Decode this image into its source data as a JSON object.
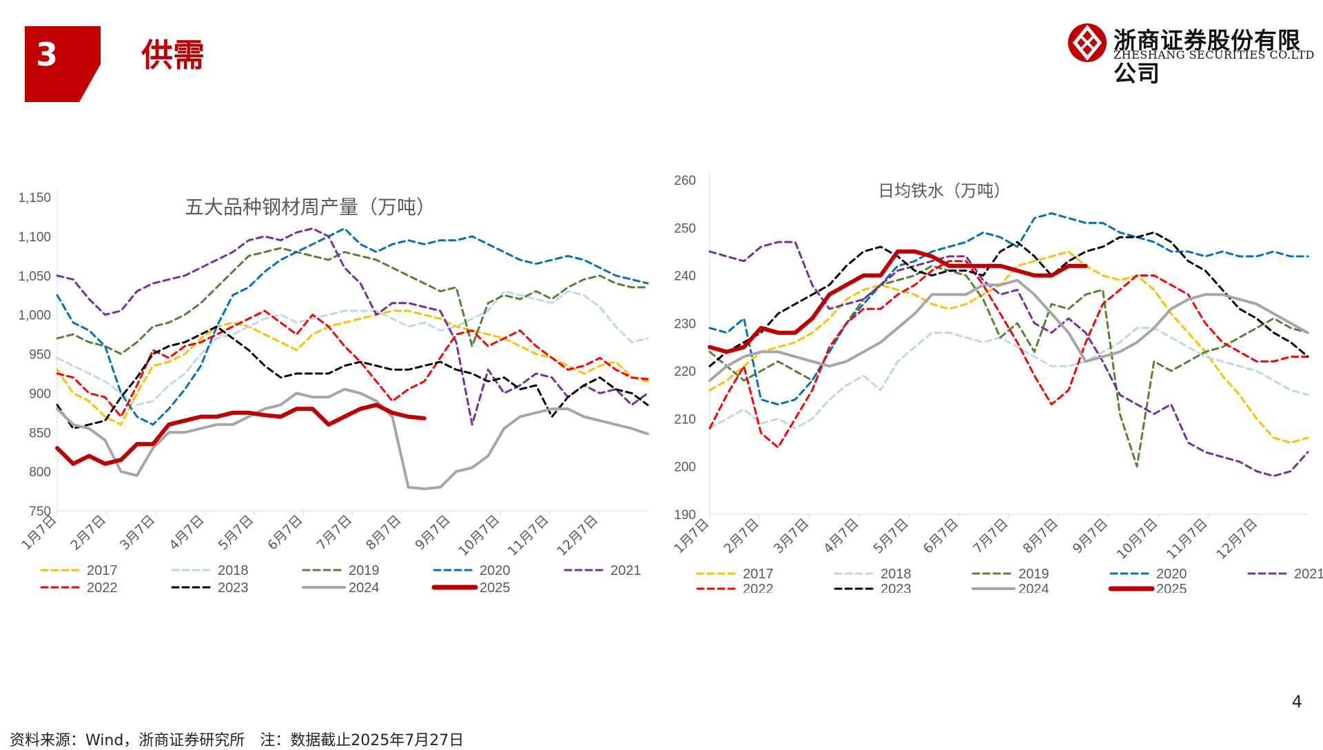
{
  "header": {
    "section_number": "3",
    "section_title": "供需",
    "company_cn": "浙商证券股份有限公司",
    "company_en": "ZHESHANG SECURITIES CO.LTD"
  },
  "page_number": "4",
  "source_note": "资料来源：Wind，浙商证券研究所　注：数据截止2025年7月27日",
  "colors": {
    "brand_red": "#c00000",
    "2017": "#ffc000",
    "2018": "#bdd7ee",
    "2019": "#548235",
    "2020": "#0070c0",
    "2021": "#7030a0",
    "2022": "#ff0000",
    "2023": "#000000",
    "2024": "#a6a6a6",
    "2025": "#c00000"
  },
  "chart_data": [
    {
      "type": "line",
      "title": "五大品种钢材周产量（万吨）",
      "x_ticks": [
        "1月7日",
        "2月7日",
        "3月7日",
        "4月7日",
        "5月7日",
        "6月7日",
        "7月7日",
        "8月7日",
        "9月7日",
        "10月7日",
        "11月7日",
        "12月7日"
      ],
      "ylim": [
        750,
        1150
      ],
      "y_ticks": [
        "750",
        "800",
        "850",
        "900",
        "950",
        "1,000",
        "1,050",
        "1,100",
        "1,150"
      ],
      "legend_order": [
        "2017",
        "2018",
        "2019",
        "2020",
        "2021",
        "2022",
        "2023",
        "2024",
        "2025"
      ],
      "series": [
        {
          "name": "2017",
          "style": "dashed",
          "values": [
            930,
            900,
            890,
            870,
            860,
            900,
            935,
            940,
            950,
            970,
            985,
            990,
            985,
            975,
            965,
            955,
            975,
            985,
            990,
            995,
            1000,
            1005,
            1005,
            1000,
            995,
            985,
            980,
            975,
            970,
            960,
            950,
            945,
            935,
            925,
            935,
            940,
            920,
            915
          ]
        },
        {
          "name": "2018",
          "style": "dashed",
          "values": [
            945,
            935,
            925,
            915,
            900,
            885,
            890,
            910,
            925,
            950,
            970,
            975,
            985,
            995,
            1000,
            990,
            995,
            1000,
            1005,
            1005,
            1005,
            995,
            985,
            990,
            980,
            985,
            995,
            1005,
            1030,
            1025,
            1020,
            1015,
            1030,
            1025,
            1010,
            985,
            965,
            970
          ]
        },
        {
          "name": "2019",
          "style": "dashed",
          "values": [
            970,
            975,
            965,
            960,
            950,
            965,
            985,
            990,
            1000,
            1015,
            1035,
            1055,
            1075,
            1080,
            1085,
            1080,
            1075,
            1070,
            1080,
            1075,
            1070,
            1060,
            1050,
            1040,
            1030,
            1035,
            960,
            1015,
            1025,
            1020,
            1030,
            1020,
            1035,
            1045,
            1050,
            1040,
            1035,
            1035
          ]
        },
        {
          "name": "2020",
          "style": "dashed",
          "values": [
            1025,
            990,
            980,
            960,
            900,
            870,
            860,
            880,
            905,
            935,
            985,
            1025,
            1035,
            1055,
            1070,
            1080,
            1090,
            1100,
            1110,
            1090,
            1080,
            1090,
            1095,
            1090,
            1095,
            1095,
            1100,
            1090,
            1080,
            1070,
            1065,
            1070,
            1075,
            1070,
            1060,
            1050,
            1045,
            1040
          ]
        },
        {
          "name": "2021",
          "style": "dashed",
          "values": [
            1050,
            1045,
            1020,
            1000,
            1005,
            1030,
            1040,
            1045,
            1050,
            1060,
            1070,
            1080,
            1095,
            1100,
            1095,
            1105,
            1110,
            1100,
            1060,
            1040,
            1000,
            1015,
            1015,
            1010,
            1005,
            965,
            860,
            930,
            900,
            910,
            925,
            920,
            895,
            910,
            900,
            905,
            885,
            900
          ]
        },
        {
          "name": "2022",
          "style": "dashed",
          "values": [
            925,
            920,
            900,
            895,
            870,
            910,
            955,
            945,
            960,
            965,
            975,
            985,
            995,
            1005,
            990,
            975,
            1000,
            985,
            960,
            940,
            915,
            890,
            905,
            915,
            945,
            975,
            980,
            960,
            970,
            980,
            960,
            945,
            930,
            935,
            945,
            930,
            920,
            918
          ]
        },
        {
          "name": "2023",
          "style": "dashed",
          "values": [
            885,
            855,
            860,
            865,
            895,
            920,
            950,
            960,
            965,
            975,
            985,
            970,
            955,
            935,
            920,
            925,
            925,
            925,
            935,
            940,
            935,
            930,
            930,
            935,
            940,
            930,
            925,
            915,
            920,
            905,
            910,
            870,
            895,
            910,
            920,
            905,
            900,
            885
          ]
        },
        {
          "name": "2024",
          "style": "solid",
          "values": [
            880,
            860,
            855,
            840,
            800,
            795,
            830,
            850,
            850,
            855,
            860,
            860,
            870,
            880,
            885,
            900,
            895,
            895,
            905,
            900,
            890,
            870,
            780,
            778,
            780,
            800,
            805,
            820,
            855,
            870,
            875,
            880,
            880,
            870,
            865,
            860,
            855,
            848
          ]
        },
        {
          "name": "2025",
          "style": "bold",
          "values": [
            830,
            810,
            820,
            810,
            815,
            835,
            835,
            860,
            865,
            870,
            870,
            875,
            875,
            872,
            870,
            880,
            880,
            860,
            870,
            880,
            885,
            875,
            870,
            868
          ]
        }
      ]
    },
    {
      "type": "line",
      "title": "日均铁水（万吨）",
      "x_ticks": [
        "1月7日",
        "2月7日",
        "3月7日",
        "4月7日",
        "5月7日",
        "6月7日",
        "7月7日",
        "8月7日",
        "9月7日",
        "10月7日",
        "11月7日",
        "12月7日"
      ],
      "ylim": [
        190,
        260
      ],
      "y_ticks": [
        "190",
        "200",
        "210",
        "220",
        "230",
        "240",
        "250",
        "260"
      ],
      "legend_order": [
        "2017",
        "2018",
        "2019",
        "2020",
        "2021",
        "2022",
        "2023",
        "2024",
        "2025"
      ],
      "series": [
        {
          "name": "2017",
          "style": "dashed",
          "values": [
            216,
            218,
            221,
            224,
            225,
            226,
            228,
            231,
            235,
            237,
            238,
            237,
            236,
            234,
            233,
            234,
            236,
            238,
            242,
            243,
            244,
            245,
            242,
            240,
            239,
            240,
            237,
            232,
            228,
            224,
            219,
            215,
            210,
            206,
            205,
            206
          ]
        },
        {
          "name": "2018",
          "style": "dashed",
          "values": [
            208,
            210,
            212,
            209,
            210,
            208,
            210,
            214,
            217,
            219,
            216,
            222,
            225,
            228,
            228,
            227,
            226,
            227,
            225,
            223,
            221,
            221,
            222,
            224,
            226,
            229,
            229,
            227,
            225,
            223,
            222,
            221,
            220,
            218,
            216,
            215
          ]
        },
        {
          "name": "2019",
          "style": "dashed",
          "values": [
            224,
            221,
            218,
            220,
            222,
            220,
            218,
            224,
            230,
            235,
            238,
            239,
            240,
            242,
            241,
            240,
            235,
            227,
            230,
            224,
            234,
            233,
            236,
            237,
            211,
            200,
            222,
            220,
            222,
            224,
            225,
            227,
            229,
            231,
            229,
            228
          ]
        },
        {
          "name": "2020",
          "style": "dashed",
          "values": [
            229,
            228,
            231,
            214,
            213,
            214,
            218,
            224,
            230,
            234,
            238,
            242,
            243,
            245,
            246,
            247,
            249,
            248,
            246,
            252,
            253,
            252,
            251,
            251,
            249,
            248,
            247,
            245,
            245,
            244,
            245,
            244,
            244,
            245,
            244,
            244
          ]
        },
        {
          "name": "2021",
          "style": "dashed",
          "values": [
            245,
            244,
            243,
            246,
            247,
            247,
            238,
            233,
            234,
            235,
            238,
            241,
            242,
            243,
            244,
            244,
            239,
            236,
            237,
            230,
            228,
            231,
            228,
            222,
            215,
            213,
            211,
            213,
            205,
            203,
            202,
            201,
            199,
            198,
            199,
            203
          ]
        },
        {
          "name": "2022",
          "style": "dashed",
          "values": [
            208,
            215,
            221,
            207,
            204,
            210,
            216,
            225,
            230,
            233,
            233,
            236,
            238,
            241,
            243,
            243,
            238,
            232,
            226,
            219,
            213,
            216,
            226,
            234,
            237,
            240,
            240,
            238,
            236,
            230,
            226,
            224,
            222,
            222,
            223,
            223
          ]
        },
        {
          "name": "2023",
          "style": "dashed",
          "values": [
            221,
            224,
            226,
            228,
            232,
            234,
            236,
            238,
            242,
            245,
            246,
            244,
            241,
            240,
            241,
            241,
            240,
            245,
            247,
            244,
            240,
            243,
            245,
            246,
            248,
            248,
            249,
            247,
            243,
            241,
            237,
            233,
            231,
            228,
            226,
            223
          ]
        },
        {
          "name": "2024",
          "style": "solid",
          "values": [
            218,
            221,
            223,
            224,
            224,
            223,
            222,
            221,
            222,
            224,
            226,
            229,
            232,
            236,
            236,
            236,
            238,
            238,
            239,
            236,
            232,
            228,
            222,
            223,
            224,
            226,
            229,
            233,
            235,
            236,
            236,
            235,
            234,
            232,
            230,
            228
          ]
        },
        {
          "name": "2025",
          "style": "bold",
          "values": [
            225,
            224,
            225,
            229,
            228,
            228,
            231,
            236,
            238,
            240,
            240,
            245,
            245,
            244,
            242,
            242,
            242,
            242,
            241,
            240,
            240,
            242,
            242
          ]
        }
      ]
    }
  ]
}
